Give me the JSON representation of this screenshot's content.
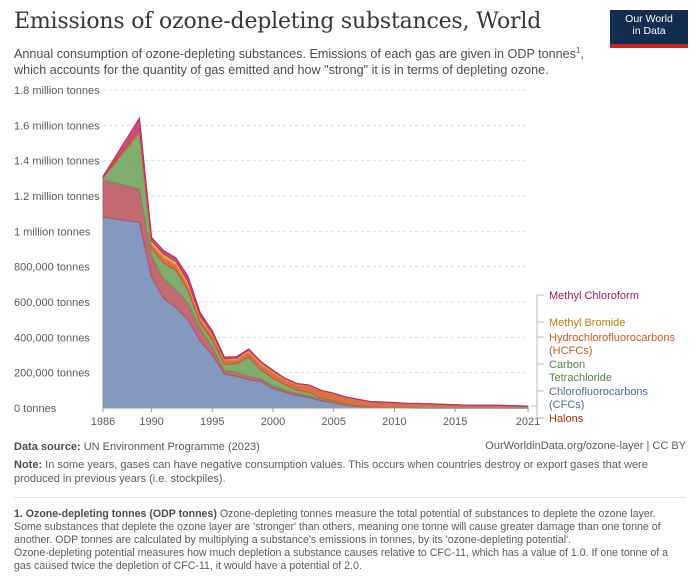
{
  "header": {
    "title": "Emissions of ozone-depleting substances, World",
    "subtitle": "Annual consumption of ozone-depleting substances. Emissions of each gas are given in ODP tonnes",
    "subtitle_sup": "1",
    "subtitle_tail": ", which accounts for the quantity of gas emitted and how \"strong\" it is in terms of depleting ozone.",
    "logo_line1": "Our World",
    "logo_line2": "in Data"
  },
  "footer": {
    "source_label": "Data source:",
    "source": "UN Environment Programme (2023)",
    "url": "OurWorldinData.org/ozone-layer | CC BY",
    "note_label": "Note:",
    "note": "In some years, gases can have negative consumption values. This occurs when countries destroy or export gases that were produced in previous years (i.e. stockpiles).",
    "footnote_label": "1. Ozone-depleting tonnes (ODP tonnes)",
    "footnote": "Ozone-depleting tonnes measure the total potential of substances to deplete the ozone layer. Some substances that deplete the ozone layer are 'stronger' than others, meaning one tonne will cause greater damage than one tonne of another. ODP tonnes are calculated by multiplying a substance's emissions in tonnes, by its 'ozone-depleting potential'.",
    "footnote2": "Ozone-depleting potential measures how much depletion a substance causes relative to CFC-11, which has a value of 1.0. If one tonne of a gas caused twice the depletion of CFC-11, it would have a potential of 2.0."
  },
  "chart_data": {
    "type": "area",
    "stacked": true,
    "x": [
      1986,
      1989,
      1990,
      1991,
      1992,
      1993,
      1994,
      1995,
      1996,
      1997,
      1998,
      1999,
      2000,
      2001,
      2002,
      2003,
      2004,
      2005,
      2006,
      2007,
      2008,
      2009,
      2010,
      2011,
      2012,
      2013,
      2014,
      2015,
      2016,
      2017,
      2018,
      2019,
      2020,
      2021
    ],
    "ylim": [
      0,
      1800000
    ],
    "yticks": [
      0,
      200000,
      400000,
      600000,
      800000,
      1000000,
      1200000,
      1400000,
      1600000,
      1800000
    ],
    "yticklabels": [
      "0 tonnes",
      "200,000 tonnes",
      "400,000 tonnes",
      "600,000 tonnes",
      "800,000 tonnes",
      "1 million tonnes",
      "1.2 million tonnes",
      "1.4 million tonnes",
      "1.6 million tonnes",
      "1.8 million tonnes"
    ],
    "xticks": [
      1986,
      1990,
      1995,
      2000,
      2005,
      2010,
      2015,
      2021
    ],
    "xticklabels": [
      "1986",
      "1990",
      "1995",
      "2000",
      "2005",
      "2010",
      "2015",
      "2021"
    ],
    "grid": "horizontal-dashed",
    "legend_position": "right",
    "series": [
      {
        "name": "Chlorofluorocarbons (CFCs)",
        "color": "#6d87b5",
        "label_color": "#4c6a9c",
        "values": [
          1080000,
          1050000,
          740000,
          620000,
          570000,
          500000,
          380000,
          300000,
          190000,
          180000,
          160000,
          150000,
          110000,
          90000,
          70000,
          60000,
          40000,
          30000,
          15000,
          8000,
          3000,
          2000,
          1000,
          500,
          0,
          0,
          0,
          0,
          0,
          0,
          0,
          0,
          0,
          0
        ]
      },
      {
        "name": "Halons",
        "color": "#b84f5c",
        "label_color": "#b13507",
        "values": [
          210000,
          190000,
          120000,
          110000,
          100000,
          95000,
          70000,
          45000,
          25000,
          22000,
          18000,
          16000,
          14000,
          12000,
          10000,
          8000,
          6000,
          4000,
          3000,
          2000,
          1000,
          500,
          300,
          200,
          100,
          0,
          0,
          0,
          0,
          0,
          0,
          0,
          0,
          0
        ]
      },
      {
        "name": "Carbon Tetrachloride",
        "color": "#6a9e55",
        "label_color": "#578145",
        "values": [
          10000,
          320000,
          40000,
          90000,
          110000,
          70000,
          30000,
          40000,
          30000,
          50000,
          110000,
          50000,
          45000,
          30000,
          20000,
          20000,
          8000,
          6000,
          4000,
          2000,
          1000,
          500,
          300,
          200,
          100,
          0,
          0,
          0,
          0,
          0,
          0,
          0,
          0,
          0
        ]
      },
      {
        "name": "Hydrochlorofluorocarbons (HCFCs)",
        "color": "#d4572a",
        "label_color": "#c95a1c",
        "values": [
          5000,
          20000,
          25000,
          30000,
          30000,
          30000,
          25000,
          25000,
          25000,
          20000,
          30000,
          30000,
          30000,
          25000,
          30000,
          35000,
          40000,
          40000,
          38000,
          35000,
          30000,
          30000,
          28000,
          25000,
          25000,
          23000,
          20000,
          18000,
          15000,
          15000,
          15000,
          14000,
          12000,
          10000
        ]
      },
      {
        "name": "Methyl Bromide",
        "color": "#e09a3b",
        "label_color": "#be7e16",
        "values": [
          0,
          0,
          20000,
          20000,
          20000,
          20000,
          15000,
          12000,
          8000,
          10000,
          10000,
          12000,
          10000,
          8000,
          6000,
          5000,
          4000,
          3000,
          2000,
          2000,
          1000,
          1000,
          1000,
          500,
          500,
          500,
          500,
          500,
          500,
          500,
          500,
          500,
          500,
          500
        ]
      },
      {
        "name": "Methyl Chloroform",
        "color": "#c0306c",
        "label_color": "#a2195d",
        "values": [
          5000,
          60000,
          20000,
          20000,
          20000,
          30000,
          20000,
          15000,
          10000,
          8000,
          6000,
          5000,
          4000,
          3000,
          2000,
          2000,
          1000,
          1000,
          500,
          500,
          200,
          100,
          0,
          0,
          0,
          0,
          0,
          0,
          0,
          0,
          0,
          0,
          0,
          0
        ]
      }
    ],
    "legend_labels": [
      {
        "lines": [
          "Methyl Chloroform"
        ],
        "series": 5
      },
      {
        "lines": [
          "Methyl Bromide"
        ],
        "series": 4
      },
      {
        "lines": [
          "Hydrochlorofluorocarbons",
          "(HCFCs)"
        ],
        "series": 3
      },
      {
        "lines": [
          "Carbon",
          "Tetrachloride"
        ],
        "series": 2
      },
      {
        "lines": [
          "Chlorofluorocarbons",
          "(CFCs)"
        ],
        "series": 0
      },
      {
        "lines": [
          "Halons"
        ],
        "series": 1
      }
    ]
  }
}
